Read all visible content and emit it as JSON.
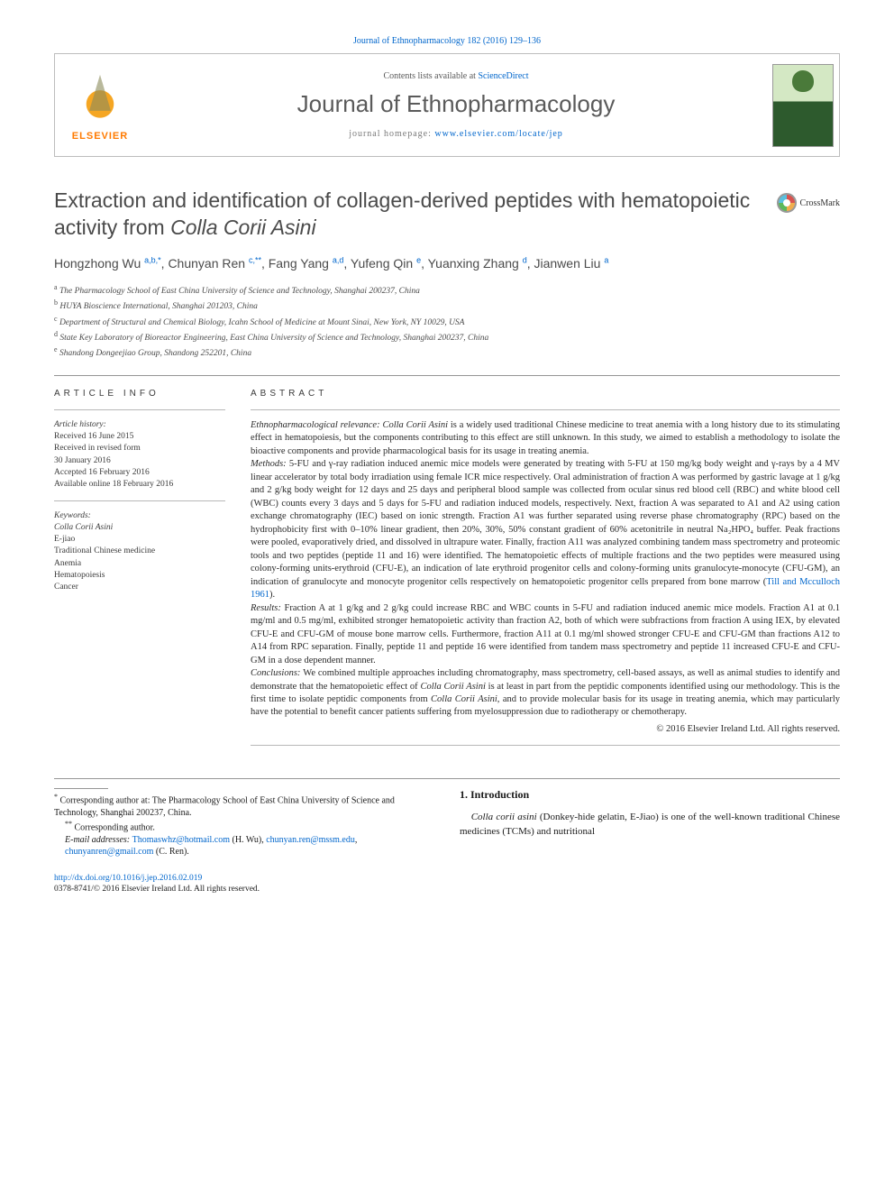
{
  "top_citation": "Journal of Ethnopharmacology 182 (2016) 129–136",
  "header": {
    "contents_prefix": "Contents lists available at ",
    "contents_link": "ScienceDirect",
    "journal": "Journal of Ethnopharmacology",
    "homepage_prefix": "journal homepage: ",
    "homepage_url": "www.elsevier.com/locate/jep",
    "publisher": "ELSEVIER",
    "cover_label_top": "Journal of",
    "cover_label_mid": "ETHNO-",
    "cover_label_bot": "PHARMACOLOGY"
  },
  "crossmark": "CrossMark",
  "title_plain": "Extraction and identification of collagen-derived peptides with hematopoietic activity from ",
  "title_italic": "Colla Corii Asini",
  "authors_html": "Hongzhong Wu|a,b,*|, Chunyan Ren|c,**|, Fang Yang|a,d|, Yufeng Qin|e|, Yuanxing Zhang|d|, Jianwen Liu|a|",
  "authors": [
    {
      "name": "Hongzhong Wu",
      "sup": "a,b,*"
    },
    {
      "name": "Chunyan Ren",
      "sup": "c,**"
    },
    {
      "name": "Fang Yang",
      "sup": "a,d"
    },
    {
      "name": "Yufeng Qin",
      "sup": "e"
    },
    {
      "name": "Yuanxing Zhang",
      "sup": "d"
    },
    {
      "name": "Jianwen Liu",
      "sup": "a"
    }
  ],
  "affiliations": [
    {
      "sup": "a",
      "text": "The Pharmacology School of East China University of Science and Technology, Shanghai 200237, China"
    },
    {
      "sup": "b",
      "text": "HUYA Bioscience International, Shanghai 201203, China"
    },
    {
      "sup": "c",
      "text": "Department of Structural and Chemical Biology, Icahn School of Medicine at Mount Sinai, New York, NY 10029, USA"
    },
    {
      "sup": "d",
      "text": "State Key Laboratory of Bioreactor Engineering, East China University of Science and Technology, Shanghai 200237, China"
    },
    {
      "sup": "e",
      "text": "Shandong Dongeejiao Group, Shandong 252201, China"
    }
  ],
  "article_info": {
    "heading": "ARTICLE INFO",
    "history_label": "Article history:",
    "history": [
      "Received 16 June 2015",
      "Received in revised form",
      "30 January 2016",
      "Accepted 16 February 2016",
      "Available online 18 February 2016"
    ],
    "keywords_label": "Keywords:",
    "keywords": [
      "Colla Corii Asini",
      "E-jiao",
      "Traditional Chinese medicine",
      "Anemia",
      "Hematopoiesis",
      "Cancer"
    ]
  },
  "abstract": {
    "heading": "ABSTRACT",
    "relevance_label": "Ethnopharmacological relevance: ",
    "relevance": "Colla Corii Asini is a widely used traditional Chinese medicine to treat anemia with a long history due to its stimulating effect in hematopoiesis, but the components contributing to this effect are still unknown. In this study, we aimed to establish a methodology to isolate the bioactive components and provide pharmacological basis for its usage in treating anemia.",
    "methods_label": "Methods: ",
    "methods": "5-FU and γ-ray radiation induced anemic mice models were generated by treating with 5-FU at 150 mg/kg body weight and γ-rays by a 4 MV linear accelerator by total body irradiation using female ICR mice respectively. Oral administration of fraction A was performed by gastric lavage at 1 g/kg and 2 g/kg body weight for 12 days and 25 days and peripheral blood sample was collected from ocular sinus red blood cell (RBC) and white blood cell (WBC) counts every 3 days and 5 days for 5-FU and radiation induced models, respectively. Next, fraction A was separated to A1 and A2 using cation exchange chromatography (IEC) based on ionic strength. Fraction A1 was further separated using reverse phase chromatography (RPC) based on the hydrophobicity first with 0–10% linear gradient, then 20%, 30%, 50% constant gradient of 60% acetonitrile in neutral Na₂HPO₄ buffer. Peak fractions were pooled, evaporatively dried, and dissolved in ultrapure water. Finally, fraction A11 was analyzed combining tandem mass spectrometry and proteomic tools and two peptides (peptide 11 and 16) were identified. The hematopoietic effects of multiple fractions and the two peptides were measured using colony-forming units-erythroid (CFU-E), an indication of late erythroid progenitor cells and colony-forming units granulocyte-monocyte (CFU-GM), an indication of granulocyte and monocyte progenitor cells respectively on hematopoietic progenitor cells prepared from bone marrow (",
    "methods_cite": "Till and Mcculloch 1961",
    "methods_tail": ").",
    "results_label": "Results: ",
    "results": "Fraction A at 1 g/kg and 2 g/kg could increase RBC and WBC counts in 5-FU and radiation induced anemic mice models. Fraction A1 at 0.1 mg/ml and 0.5 mg/ml, exhibited stronger hematopoietic activity than fraction A2, both of which were subfractions from fraction A using IEX, by elevated CFU-E and CFU-GM of mouse bone marrow cells. Furthermore, fraction A11 at 0.1 mg/ml showed stronger CFU-E and CFU-GM than fractions A12 to A14 from RPC separation. Finally, peptide 11 and peptide 16 were identified from tandem mass spectrometry and peptide 11 increased CFU-E and CFU-GM in a dose dependent manner.",
    "conclusions_label": "Conclusions: ",
    "conclusions": "We combined multiple approaches including chromatography, mass spectrometry, cell-based assays, as well as animal studies to identify and demonstrate that the hematopoietic effect of Colla Corii Asini is at least in part from the peptidic components identified using our methodology. This is the first time to isolate peptidic components from Colla Corii Asini, and to provide molecular basis for its usage in treating anemia, which may particularly have the potential to benefit cancer patients suffering from myelosuppression due to radiotherapy or chemotherapy.",
    "copyright": "© 2016 Elsevier Ireland Ltd. All rights reserved."
  },
  "footnotes": {
    "star1": "* Corresponding author at: The Pharmacology School of East China University of Science and Technology, Shanghai 200237, China.",
    "star2": "** Corresponding author.",
    "email_label": "E-mail addresses: ",
    "emails": [
      {
        "addr": "Thomaswhz@hotmail.com",
        "who": " (H. Wu), "
      },
      {
        "addr": "chunyan.ren@mssm.edu",
        "who": ", "
      },
      {
        "addr": "chunyanren@gmail.com",
        "who": " (C. Ren)."
      }
    ]
  },
  "intro": {
    "heading": "1.  Introduction",
    "body_pre": "Colla corii asini",
    "body": " (Donkey-hide gelatin, E-Jiao) is one of the well-known traditional Chinese medicines (TCMs) and nutritional"
  },
  "doi": {
    "url": "http://dx.doi.org/10.1016/j.jep.2016.02.019",
    "line2": "0378-8741/© 2016 Elsevier Ireland Ltd. All rights reserved."
  }
}
